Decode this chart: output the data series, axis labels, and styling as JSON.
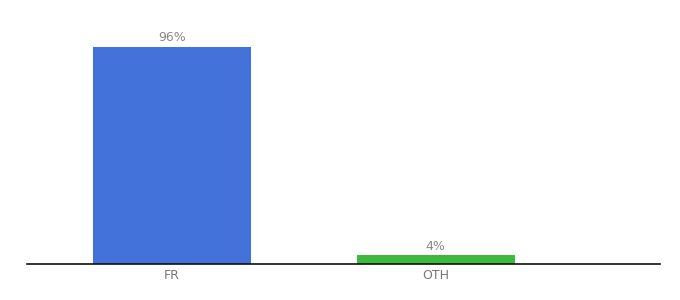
{
  "categories": [
    "FR",
    "OTH"
  ],
  "values": [
    96,
    4
  ],
  "bar_colors": [
    "#4472db",
    "#3dba3d"
  ],
  "label_texts": [
    "96%",
    "4%"
  ],
  "ylim": [
    0,
    106
  ],
  "background_color": "#ffffff",
  "bar_width": 0.6,
  "figsize": [
    6.8,
    3.0
  ],
  "dpi": 100,
  "label_fontsize": 9,
  "tick_fontsize": 9,
  "tick_color": "#777777",
  "spine_color": "#111111",
  "x_positions": [
    0,
    1
  ]
}
